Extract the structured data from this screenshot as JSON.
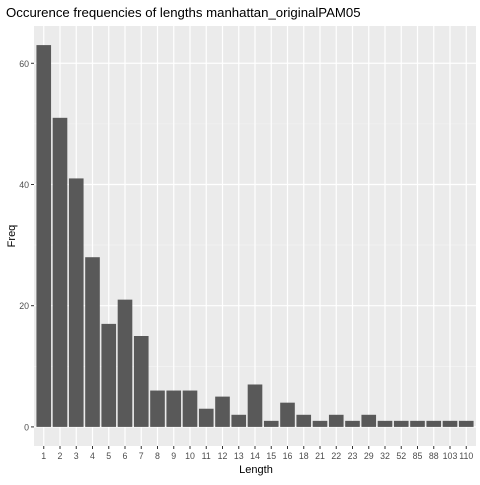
{
  "chart_data": {
    "type": "bar",
    "title": "Occurence frequencies of lengths manhattan_originalPAM05",
    "xlabel": "Length",
    "ylabel": "Freq",
    "categories": [
      "1",
      "2",
      "3",
      "4",
      "5",
      "6",
      "7",
      "8",
      "9",
      "10",
      "11",
      "12",
      "13",
      "14",
      "15",
      "16",
      "18",
      "21",
      "22",
      "23",
      "29",
      "32",
      "52",
      "85",
      "88",
      "103",
      "110"
    ],
    "values": [
      63,
      51,
      41,
      28,
      17,
      21,
      15,
      6,
      6,
      6,
      3,
      5,
      2,
      7,
      1,
      4,
      2,
      1,
      2,
      1,
      2,
      1,
      1,
      1,
      1,
      1,
      1
    ],
    "ylim": [
      -3.15,
      66.15
    ],
    "yticks": [
      0,
      20,
      40,
      60
    ],
    "grid": true,
    "colors": {
      "bar": "#595959",
      "panel_background": "#ebebeb",
      "grid_major": "#ffffff",
      "grid_minor": "#f5f5f5",
      "axis_text": "#4d4d4d",
      "title_text": "#000000"
    }
  }
}
